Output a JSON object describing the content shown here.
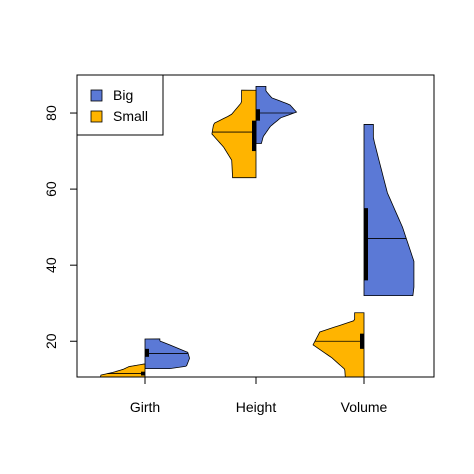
{
  "chart_data": {
    "type": "violin",
    "title": "",
    "xlabel": "",
    "ylabel": "",
    "categories": [
      "Girth",
      "Height",
      "Volume"
    ],
    "yticks": [
      20,
      40,
      60,
      80
    ],
    "ylim": [
      10,
      90
    ],
    "grid": false,
    "legend_position": "top-left",
    "series": [
      {
        "name": "Big",
        "color": "#5B79D6",
        "side": "right",
        "stats": [
          {
            "min": 12.8,
            "max": 20.6,
            "median": 16.8,
            "q1": 15.9,
            "q3": 18.0
          },
          {
            "min": 72.0,
            "max": 87.0,
            "median": 80.0,
            "q1": 78.0,
            "q3": 81.0
          },
          {
            "min": 32.0,
            "max": 77.0,
            "median": 47.0,
            "q1": 36.0,
            "q3": 55.0
          }
        ]
      },
      {
        "name": "Small",
        "color": "#FFB400",
        "side": "left",
        "stats": [
          {
            "min": 10.0,
            "max": 14.0,
            "median": 11.5,
            "q1": 11.0,
            "q3": 12.0
          },
          {
            "min": 63.0,
            "max": 86.0,
            "median": 75.0,
            "q1": 70.0,
            "q3": 78.0
          },
          {
            "min": 10.0,
            "max": 27.5,
            "median": 20.0,
            "q1": 18.0,
            "q3": 22.0
          }
        ]
      }
    ]
  }
}
